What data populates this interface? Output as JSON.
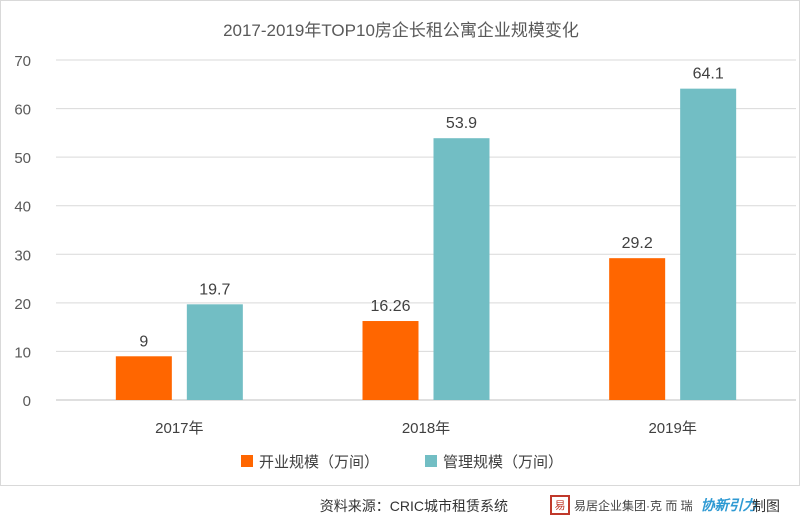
{
  "chart_data": {
    "type": "bar",
    "title": "2017-2019年TOP10房企长租公寓企业规模变化",
    "categories": [
      "2017年",
      "2018年",
      "2019年"
    ],
    "series": [
      {
        "name": "开业规模（万间）",
        "values": [
          9,
          16.26,
          29.2
        ],
        "labels": [
          "9",
          "16.26",
          "29.2"
        ],
        "color": "#ff6600"
      },
      {
        "name": "管理规模（万间）",
        "values": [
          19.7,
          53.9,
          64.1
        ],
        "labels": [
          "19.7",
          "53.9",
          "64.1"
        ],
        "color": "#72bec4"
      }
    ],
    "ylim": [
      0,
      70
    ],
    "yticks": [
      "0",
      "10",
      "20",
      "30",
      "40",
      "50",
      "60",
      "70"
    ],
    "grid": true,
    "legend_position": "bottom"
  },
  "footer": {
    "source": "资料来源：CRIC城市租赁系统",
    "seal_glyph": "易",
    "cric_logo": "易居企业集团·克 而 瑞",
    "partner_logo": "协新引力",
    "made": "制图"
  }
}
